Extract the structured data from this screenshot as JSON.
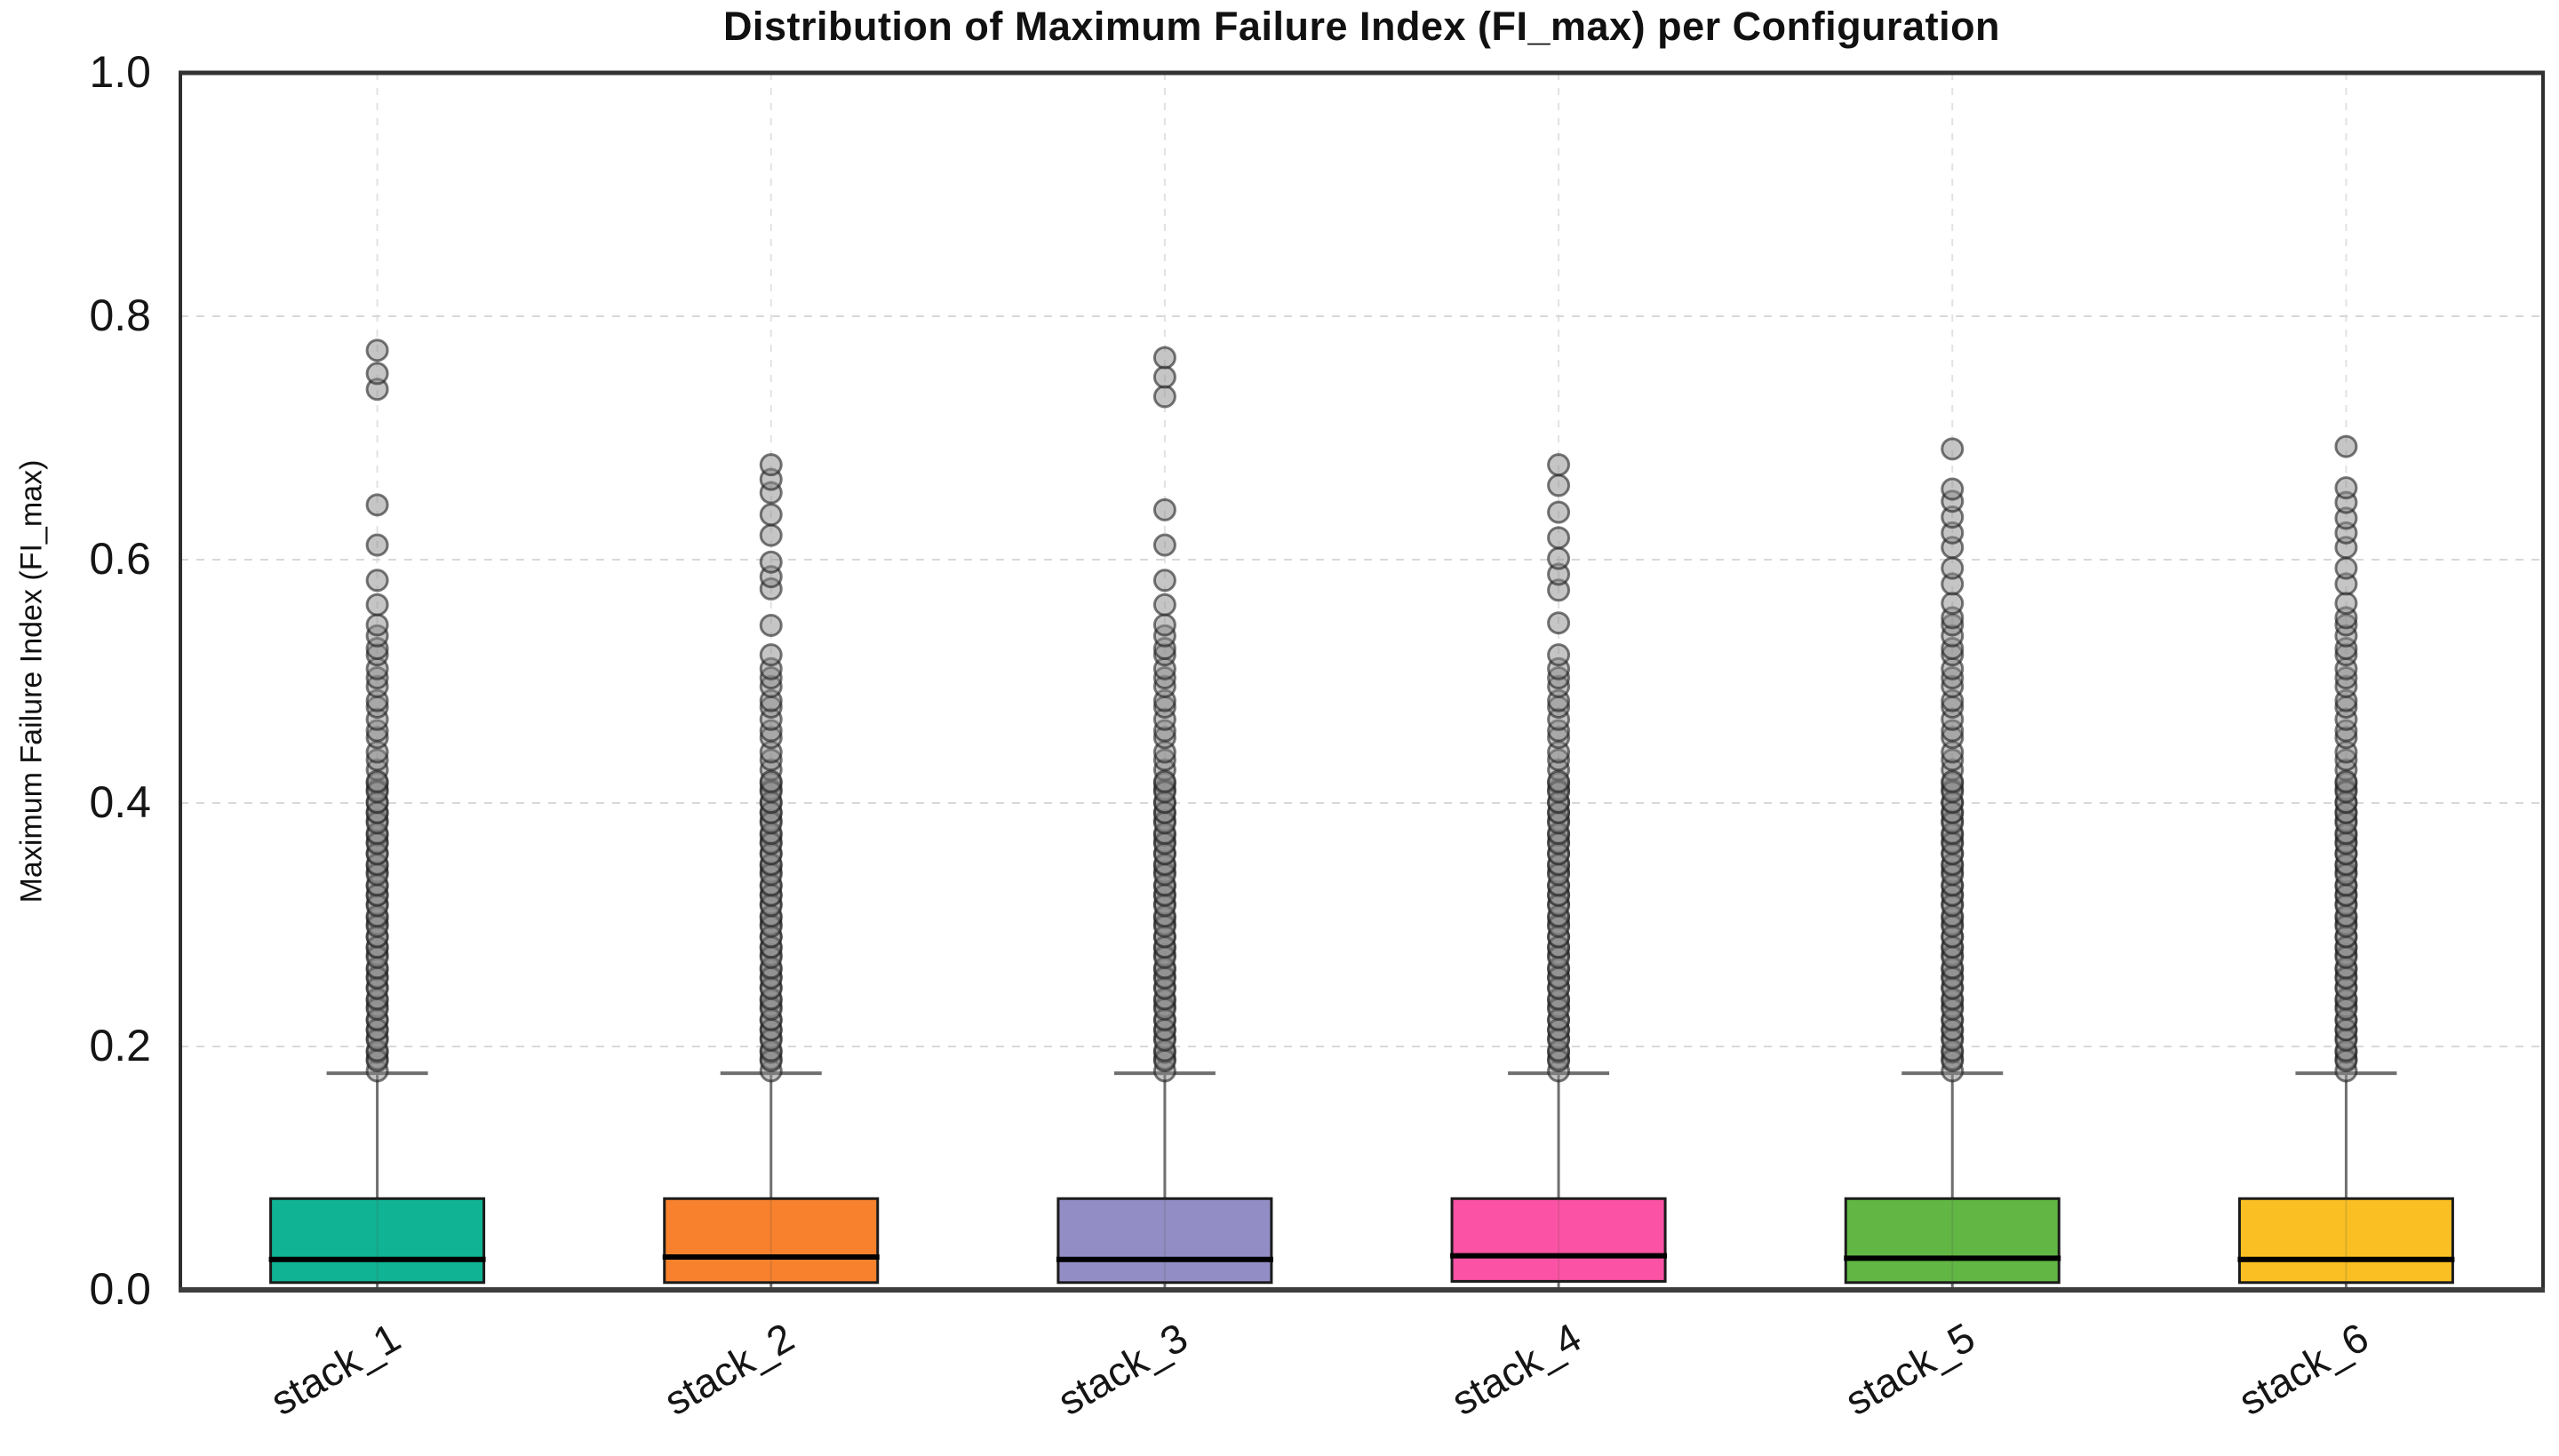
{
  "chart_data": {
    "type": "boxplot",
    "title": "Distribution of Maximum Failure Index (FI_max) per Configuration",
    "ylabel": "Maximum Failure Index (FI_max)",
    "xlabel": "",
    "ylim": [
      0.0,
      1.0
    ],
    "yticks": [
      0.0,
      0.2,
      0.4,
      0.6,
      0.8,
      1.0
    ],
    "ytick_labels": [
      "0.0",
      "0.2",
      "0.4",
      "0.6",
      "0.8",
      "1.0"
    ],
    "categories": [
      "stack_1",
      "stack_2",
      "stack_3",
      "stack_4",
      "stack_5",
      "stack_6"
    ],
    "grid": {
      "horizontal": true,
      "vertical": true,
      "style": "dashed",
      "h_color": "#d8d8d8",
      "v_color": "#e2e2e2"
    },
    "style": {
      "frame_color": "#2e2e2e",
      "box_edge_color": "#1b1b1b",
      "median_color": "#000000",
      "whisker_color": "#6f6f6f",
      "outlier_fill": "#8c8c8c",
      "outlier_edge": "#1f1f1f",
      "outlier_fill_opacity": 0.5,
      "outlier_edge_opacity": 0.6
    },
    "series": [
      {
        "name": "stack_1",
        "color": "#10b394",
        "q1": 0.006,
        "median": 0.025,
        "q3": 0.075,
        "whisker_low": 0.001,
        "whisker_high": 0.178,
        "outlier_column": {
          "from": 0.18,
          "to": 0.553,
          "step": 0.0085
        },
        "outlier_column_dense": {
          "from": 0.184,
          "to": 0.42,
          "step": 0.0085
        },
        "outliers_sparse": [
          0.563,
          0.583,
          0.612,
          0.645,
          0.74,
          0.753,
          0.772
        ]
      },
      {
        "name": "stack_2",
        "color": "#f8812d",
        "q1": 0.006,
        "median": 0.027,
        "q3": 0.075,
        "whisker_low": 0.001,
        "whisker_high": 0.178,
        "outlier_column": {
          "from": 0.18,
          "to": 0.525,
          "step": 0.0085
        },
        "outlier_column_dense": {
          "from": 0.184,
          "to": 0.42,
          "step": 0.0085
        },
        "outliers_sparse": [
          0.546,
          0.576,
          0.586,
          0.598,
          0.62,
          0.637,
          0.655,
          0.666,
          0.678
        ]
      },
      {
        "name": "stack_3",
        "color": "#928ec5",
        "q1": 0.006,
        "median": 0.025,
        "q3": 0.075,
        "whisker_low": 0.001,
        "whisker_high": 0.178,
        "outlier_column": {
          "from": 0.18,
          "to": 0.553,
          "step": 0.0085
        },
        "outlier_column_dense": {
          "from": 0.184,
          "to": 0.42,
          "step": 0.0085
        },
        "outliers_sparse": [
          0.563,
          0.583,
          0.612,
          0.641,
          0.734,
          0.75,
          0.766
        ]
      },
      {
        "name": "stack_4",
        "color": "#fc52a5",
        "q1": 0.007,
        "median": 0.028,
        "q3": 0.075,
        "whisker_low": 0.001,
        "whisker_high": 0.178,
        "outlier_column": {
          "from": 0.18,
          "to": 0.527,
          "step": 0.0085
        },
        "outlier_column_dense": {
          "from": 0.184,
          "to": 0.42,
          "step": 0.0085
        },
        "outliers_sparse": [
          0.548,
          0.575,
          0.588,
          0.601,
          0.618,
          0.639,
          0.661,
          0.678
        ]
      },
      {
        "name": "stack_5",
        "color": "#62b744",
        "q1": 0.006,
        "median": 0.026,
        "q3": 0.075,
        "whisker_low": 0.001,
        "whisker_high": 0.178,
        "outlier_column": {
          "from": 0.18,
          "to": 0.565,
          "step": 0.0085
        },
        "outlier_column_dense": {
          "from": 0.184,
          "to": 0.42,
          "step": 0.0085
        },
        "outliers_sparse": [
          0.58,
          0.593,
          0.61,
          0.622,
          0.635,
          0.648,
          0.658,
          0.691
        ]
      },
      {
        "name": "stack_6",
        "color": "#fac023",
        "q1": 0.006,
        "median": 0.025,
        "q3": 0.075,
        "whisker_low": 0.001,
        "whisker_high": 0.178,
        "outlier_column": {
          "from": 0.18,
          "to": 0.565,
          "step": 0.0085
        },
        "outlier_column_dense": {
          "from": 0.184,
          "to": 0.42,
          "step": 0.0085
        },
        "outliers_sparse": [
          0.58,
          0.593,
          0.61,
          0.622,
          0.634,
          0.647,
          0.659,
          0.693
        ]
      }
    ]
  }
}
